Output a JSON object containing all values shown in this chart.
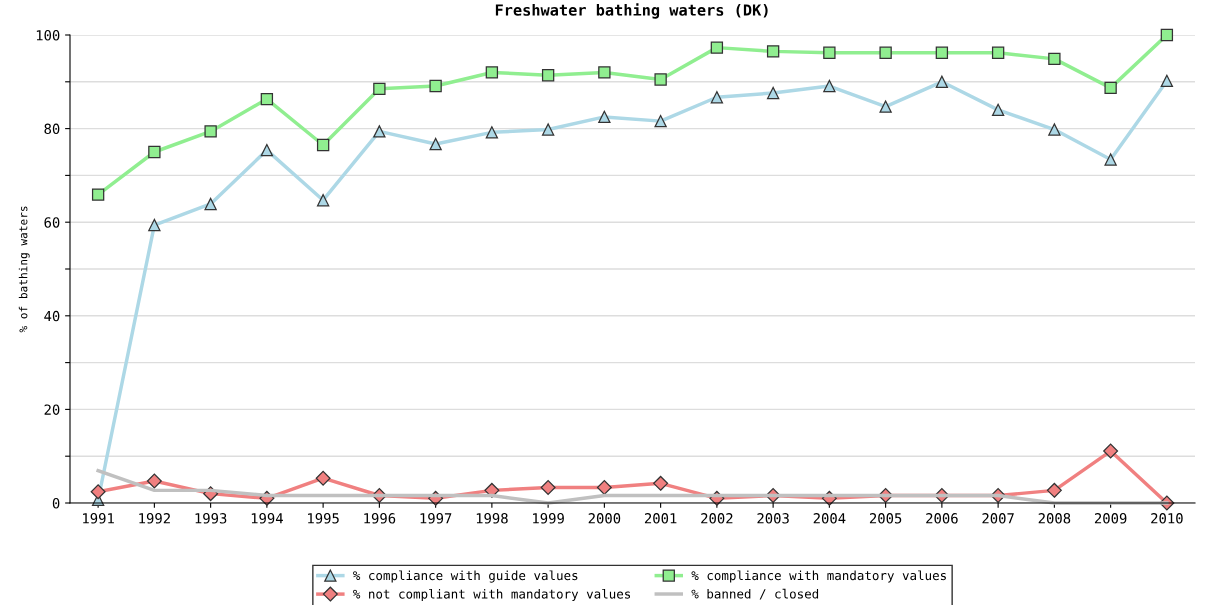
{
  "chart_data": {
    "type": "line",
    "title": "Freshwater bathing waters (DK)",
    "ylabel": "% of bathing waters",
    "categories": [
      "1991",
      "1992",
      "1993",
      "1994",
      "1995",
      "1996",
      "1997",
      "1998",
      "1999",
      "2000",
      "2001",
      "2002",
      "2003",
      "2004",
      "2005",
      "2006",
      "2007",
      "2008",
      "2009",
      "2010"
    ],
    "series": [
      {
        "name": "% compliance with guide values",
        "color": "#add8e6",
        "marker": "triangle",
        "values": [
          0.7,
          59.4,
          63.9,
          75.4,
          64.7,
          79.4,
          76.7,
          79.2,
          79.8,
          82.5,
          81.6,
          86.7,
          87.6,
          89.1,
          84.7,
          90,
          84,
          79.8,
          73.4,
          90.2
        ]
      },
      {
        "name": "% not compliant with mandatory values",
        "color": "#f08080",
        "marker": "diamond",
        "values": [
          2.4,
          4.7,
          2,
          1,
          5.3,
          1.6,
          1,
          2.7,
          3.3,
          3.3,
          4.2,
          1,
          1.6,
          1,
          1.6,
          1.6,
          1.6,
          2.7,
          11.1,
          0
        ]
      },
      {
        "name": "% compliance with mandatory values",
        "color": "#90ee90",
        "marker": "square",
        "values": [
          65.9,
          75,
          79.4,
          86.3,
          76.5,
          88.5,
          89.1,
          92,
          91.4,
          92,
          90.5,
          97.3,
          96.5,
          96.2,
          96.2,
          96.2,
          96.2,
          94.9,
          88.7,
          100
        ]
      },
      {
        "name": "% banned / closed",
        "color": "#c0c0c0",
        "marker": "none",
        "values": [
          6.9,
          2.7,
          2.7,
          1.6,
          1.6,
          1.6,
          1.6,
          1.6,
          0,
          1.6,
          1.6,
          1.6,
          1.6,
          1.6,
          1.6,
          1.6,
          1.6,
          0,
          0,
          0
        ]
      }
    ],
    "ylim": [
      0,
      100
    ],
    "yticks": [
      0,
      {
        "value": 10,
        "label": null
      },
      20,
      {
        "value": 30,
        "label": null
      },
      40,
      {
        "value": 50,
        "label": null
      },
      60,
      {
        "value": 70,
        "label": null
      },
      80,
      {
        "value": 90,
        "label": null
      },
      100
    ],
    "grid": "y",
    "legend": "bottom"
  }
}
